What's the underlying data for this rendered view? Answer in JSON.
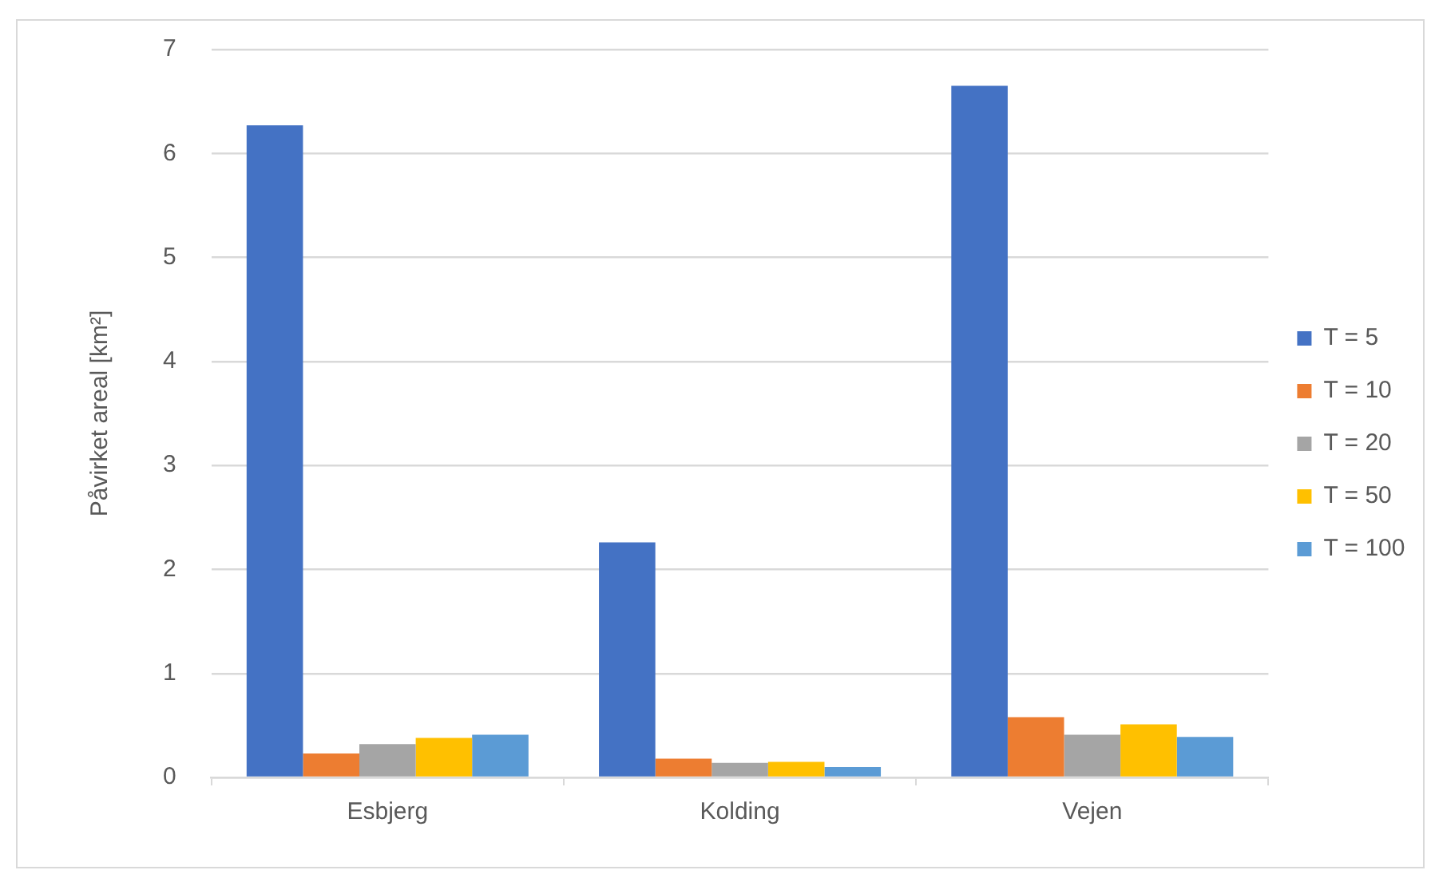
{
  "chart_data": {
    "type": "bar",
    "ylabel": "Påvirket areal [km²]",
    "categories": [
      "Esbjerg",
      "Kolding",
      "Vejen"
    ],
    "series": [
      {
        "name": "T = 5",
        "color": "#4472c4",
        "values": [
          6.27,
          2.26,
          6.65
        ]
      },
      {
        "name": "T = 10",
        "color": "#ed7d31",
        "values": [
          0.23,
          0.18,
          0.58
        ]
      },
      {
        "name": "T = 20",
        "color": "#a5a5a5",
        "values": [
          0.32,
          0.14,
          0.41
        ]
      },
      {
        "name": "T = 50",
        "color": "#ffc000",
        "values": [
          0.38,
          0.15,
          0.51
        ]
      },
      {
        "name": "T = 100",
        "color": "#5b9bd5",
        "values": [
          0.41,
          0.1,
          0.39
        ]
      }
    ],
    "ylim": [
      0,
      7
    ],
    "yticks": [
      0,
      1,
      2,
      3,
      4,
      5,
      6,
      7
    ],
    "grid": "y",
    "legend": "right"
  }
}
